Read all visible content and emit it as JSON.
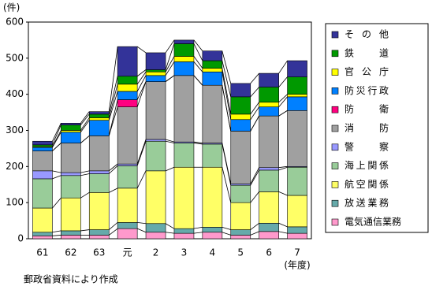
{
  "chart_data": {
    "type": "stacked-bar",
    "y_label": "(件)",
    "x_unit": "(年度)",
    "footnote": "郵政省資料により作成",
    "categories": [
      "61",
      "62",
      "63",
      "元",
      "2",
      "3",
      "4",
      "5",
      "6",
      "7"
    ],
    "ylim": [
      0,
      600
    ],
    "yticks": [
      0,
      100,
      200,
      300,
      400,
      500,
      600
    ],
    "series": [
      {
        "name": "電気通信業務",
        "color": "#ff99cc",
        "values": [
          8,
          10,
          10,
          28,
          18,
          15,
          18,
          10,
          20,
          15
        ]
      },
      {
        "name": "放送業務",
        "color": "#66aaaa",
        "values": [
          10,
          12,
          15,
          17,
          24,
          13,
          14,
          15,
          23,
          18
        ]
      },
      {
        "name": "航空関係",
        "color": "#ffff66",
        "values": [
          67,
          91,
          103,
          95,
          146,
          170,
          166,
          75,
          87,
          87
        ]
      },
      {
        "name": "海上関係",
        "color": "#99cc99",
        "values": [
          81,
          62,
          52,
          62,
          82,
          67,
          64,
          48,
          60,
          78
        ]
      },
      {
        "name": "警察",
        "color": "#9999ff",
        "values": [
          22,
          8,
          8,
          5,
          5,
          3,
          3,
          4,
          7,
          2
        ]
      },
      {
        "name": "消防",
        "color": "#a0a0a0",
        "values": [
          55,
          82,
          97,
          158,
          160,
          184,
          160,
          146,
          143,
          155
        ]
      },
      {
        "name": "防衛",
        "color": "#ff0080",
        "values": [
          0,
          0,
          0,
          20,
          0,
          0,
          0,
          0,
          0,
          0
        ]
      },
      {
        "name": "防災行政",
        "color": "#0080ff",
        "values": [
          10,
          30,
          43,
          23,
          17,
          38,
          37,
          32,
          25,
          38
        ]
      },
      {
        "name": "官公庁",
        "color": "#ffff00",
        "values": [
          2,
          5,
          7,
          20,
          10,
          15,
          10,
          15,
          13,
          7
        ]
      },
      {
        "name": "鉄道",
        "color": "#009900",
        "values": [
          5,
          15,
          10,
          22,
          6,
          35,
          21,
          48,
          42,
          48
        ]
      },
      {
        "name": "その他",
        "color": "#333399",
        "values": [
          10,
          5,
          7,
          82,
          47,
          10,
          27,
          37,
          38,
          45
        ]
      }
    ]
  }
}
